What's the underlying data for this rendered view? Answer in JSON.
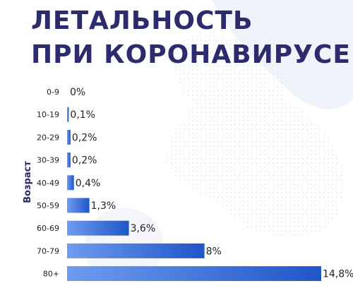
{
  "header": {
    "title_line1": "ЛЕТАЛЬНОСТЬ",
    "title_line2": "ПРИ КОРОНАВИРУСЕ"
  },
  "colors": {
    "title": "#2b2b6e",
    "bar_light": "#6f9bf0",
    "bar_dark": "#1f56c8",
    "background_tint": "#eef2fb"
  },
  "chart_data": {
    "type": "bar",
    "orientation": "horizontal",
    "ylabel": "Возраст",
    "xlabel": "",
    "categories": [
      "0-9",
      "10-19",
      "20-29",
      "30-39",
      "40-49",
      "50-59",
      "60-69",
      "70-79",
      "80+"
    ],
    "values": [
      0,
      0.1,
      0.2,
      0.2,
      0.4,
      1.3,
      3.6,
      8,
      14.8
    ],
    "value_labels": [
      "0%",
      "0,1%",
      "0,2%",
      "0,2%",
      "0,4%",
      "1,3%",
      "3,6%",
      "8%",
      "14,8%"
    ],
    "xlim": [
      0,
      14.8
    ],
    "grid": false
  }
}
